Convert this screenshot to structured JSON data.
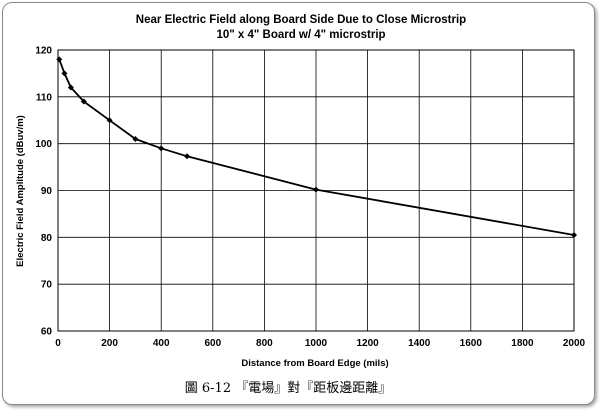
{
  "chart_data": {
    "type": "line",
    "title": "Near Electric Field along Board Side Due to Close Microstrip",
    "subtitle": "10\" x 4\" Board w/ 4\" microstrip",
    "xlabel": "Distance from Board Edge (mils)",
    "ylabel": "Electric Field Amplitude (dBuv/m)",
    "xlim": [
      0,
      2000
    ],
    "ylim": [
      60,
      120
    ],
    "x_ticks": [
      "0",
      "200",
      "400",
      "600",
      "800",
      "1000",
      "1200",
      "1400",
      "1600",
      "1800",
      "2000"
    ],
    "y_ticks": [
      "60",
      "70",
      "80",
      "90",
      "100",
      "110",
      "120"
    ],
    "grid": true,
    "series": [
      {
        "x": [
          5,
          25,
          50,
          100,
          200,
          300,
          400,
          500,
          1000,
          2000
        ],
        "y": [
          118,
          115,
          112,
          109,
          105,
          101,
          99,
          97.3,
          90.2,
          80.5
        ]
      }
    ]
  },
  "caption": "圖 6-12 『電場』對『距板邊距離』",
  "colors": {
    "line": "#000000",
    "grid": "#000000",
    "background": "#ffffff"
  }
}
